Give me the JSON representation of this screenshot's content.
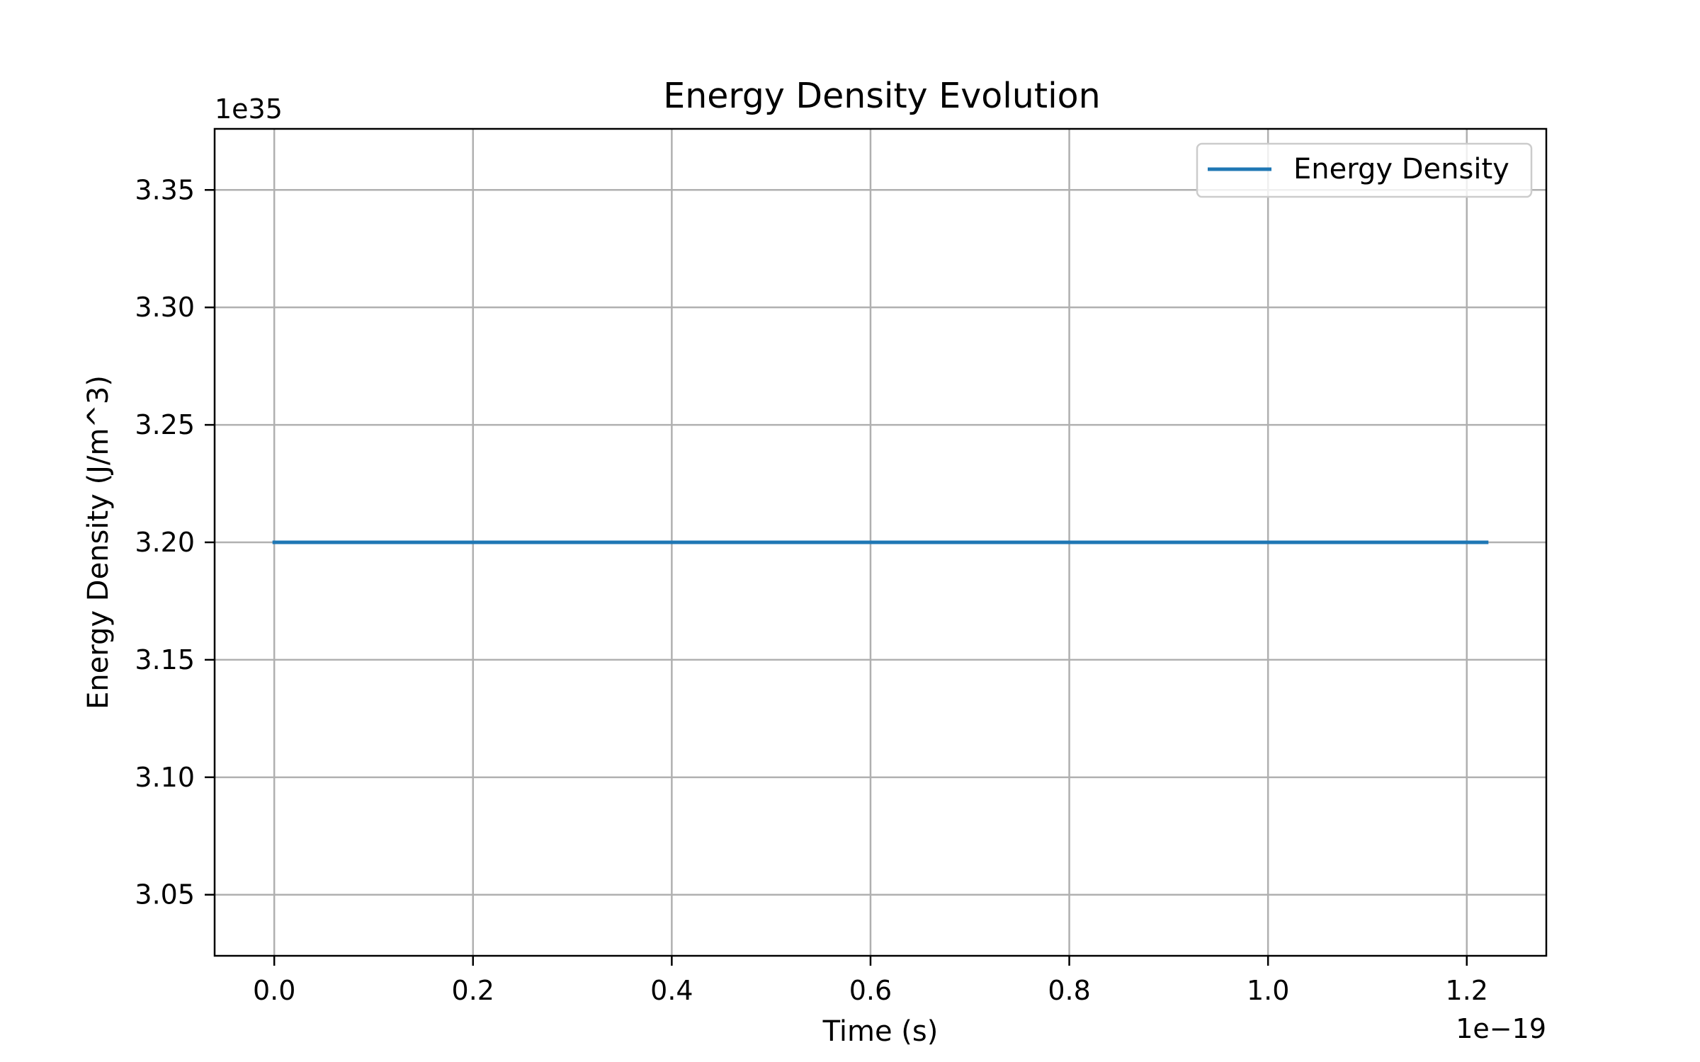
{
  "chart_data": {
    "type": "line",
    "title": "Energy Density Evolution",
    "xlabel": "Time (s)",
    "ylabel": "Energy Density (J/m^3)",
    "x_offset_label": "1e−19",
    "y_offset_label": "1e35",
    "x_scale_factor": 1e-19,
    "y_scale_factor": 1e+35,
    "xlim": [
      -0.06,
      1.28
    ],
    "ylim": [
      3.024,
      3.376
    ],
    "x_ticks": [
      0.0,
      0.2,
      0.4,
      0.6,
      0.8,
      1.0,
      1.2
    ],
    "x_tick_labels": [
      "0.0",
      "0.2",
      "0.4",
      "0.6",
      "0.8",
      "1.0",
      "1.2"
    ],
    "y_ticks": [
      3.05,
      3.1,
      3.15,
      3.2,
      3.25,
      3.3,
      3.35
    ],
    "y_tick_labels": [
      "3.05",
      "3.10",
      "3.15",
      "3.20",
      "3.25",
      "3.30",
      "3.35"
    ],
    "grid": true,
    "legend_position": "top-right",
    "series": [
      {
        "name": "Energy Density",
        "color": "#1f77b4",
        "x": [
          0.0,
          1.22
        ],
        "y": [
          3.2,
          3.2
        ]
      }
    ]
  }
}
